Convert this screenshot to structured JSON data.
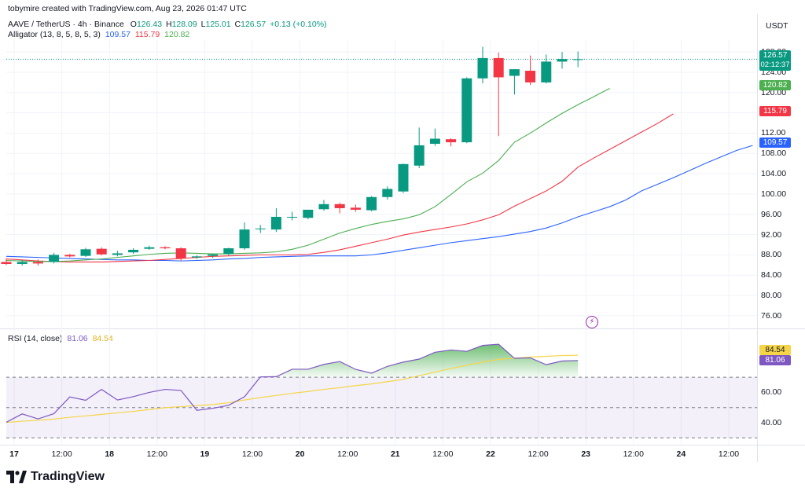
{
  "header": {
    "credit": "tobymire created with TradingView.com, Aug 23, 2026 01:47 UTC",
    "symbol": "AAVE / TetherUS · 4h · Binance",
    "o_label": "O",
    "o_value": "126.43",
    "h_label": "H",
    "h_value": "128.09",
    "l_label": "L",
    "l_value": "125.01",
    "c_label": "C",
    "c_value": "126.57",
    "change": "+0.13 (+0.10%)",
    "alligator_label": "Alligator (13, 8, 5, 8, 5, 3)",
    "alligator_jaw": "109.57",
    "alligator_teeth": "115.79",
    "alligator_lips": "120.82",
    "currency": "USDT"
  },
  "rsi_header": {
    "label": "RSI (14, close)",
    "rsi_value": "81.06",
    "ma_value": "84.54"
  },
  "price_badges": {
    "last_price": "126.57",
    "countdown": "02:12:37",
    "lips": "120.82",
    "teeth": "115.79",
    "jaw": "109.57"
  },
  "rsi_badges": {
    "ma": "84.54",
    "rsi": "81.06"
  },
  "footer": {
    "logo_text": "TradingView"
  },
  "colors": {
    "up": "#089981",
    "down": "#f23645",
    "jaw": "#2962ff",
    "teeth": "#f23645",
    "lips": "#4caf50",
    "rsi": "#7e57c2",
    "rsi_ma": "#f5d547"
  },
  "chart_data": [
    {
      "type": "candlestick",
      "title": "",
      "y_ticks": [
        "128.00",
        "124.00",
        "120.00",
        "116.00",
        "112.00",
        "108.00",
        "104.00",
        "100.00",
        "96.00",
        "92.00",
        "88.00",
        "84.00",
        "80.00",
        "76.00"
      ],
      "ylim": [
        73.5,
        130.5
      ],
      "x_ticks": [
        "17",
        "12:00",
        "18",
        "12:00",
        "19",
        "12:00",
        "20",
        "12:00",
        "21",
        "12:00",
        "22",
        "12:00",
        "23",
        "12:00",
        "24",
        "12:00"
      ],
      "x_tick_bar_index": [
        0,
        3,
        6,
        9,
        12,
        15,
        18,
        21,
        24,
        27,
        30,
        33,
        36,
        39,
        42,
        45
      ],
      "candles": [
        {
          "o": 86.6,
          "h": 87.3,
          "l": 86.0,
          "c": 86.2
        },
        {
          "o": 86.2,
          "h": 87.0,
          "l": 85.9,
          "c": 86.6
        },
        {
          "o": 86.6,
          "h": 87.1,
          "l": 85.9,
          "c": 86.3
        },
        {
          "o": 86.6,
          "h": 88.4,
          "l": 86.3,
          "c": 88.0
        },
        {
          "o": 88.0,
          "h": 88.2,
          "l": 87.5,
          "c": 87.7
        },
        {
          "o": 87.8,
          "h": 89.4,
          "l": 87.6,
          "c": 89.1
        },
        {
          "o": 89.2,
          "h": 89.5,
          "l": 87.9,
          "c": 88.1
        },
        {
          "o": 88.0,
          "h": 88.8,
          "l": 87.7,
          "c": 88.3
        },
        {
          "o": 88.5,
          "h": 89.3,
          "l": 88.2,
          "c": 89.0
        },
        {
          "o": 89.2,
          "h": 89.8,
          "l": 89.0,
          "c": 89.5
        },
        {
          "o": 89.5,
          "h": 89.7,
          "l": 89.1,
          "c": 89.3
        },
        {
          "o": 89.3,
          "h": 89.5,
          "l": 86.8,
          "c": 87.3
        },
        {
          "o": 87.5,
          "h": 87.9,
          "l": 87.2,
          "c": 87.7
        },
        {
          "o": 87.8,
          "h": 88.2,
          "l": 87.4,
          "c": 88.1
        },
        {
          "o": 88.2,
          "h": 89.4,
          "l": 87.9,
          "c": 89.3
        },
        {
          "o": 89.3,
          "h": 94.4,
          "l": 89.0,
          "c": 93.0
        },
        {
          "o": 93.1,
          "h": 93.9,
          "l": 92.3,
          "c": 93.2
        },
        {
          "o": 93.0,
          "h": 97.2,
          "l": 92.5,
          "c": 95.5
        },
        {
          "o": 95.5,
          "h": 96.5,
          "l": 94.8,
          "c": 95.5
        },
        {
          "o": 95.3,
          "h": 96.9,
          "l": 95.0,
          "c": 96.9
        },
        {
          "o": 97.0,
          "h": 98.8,
          "l": 96.7,
          "c": 98.0
        },
        {
          "o": 98.0,
          "h": 98.3,
          "l": 96.2,
          "c": 97.2
        },
        {
          "o": 97.3,
          "h": 97.9,
          "l": 96.5,
          "c": 96.9
        },
        {
          "o": 96.8,
          "h": 99.6,
          "l": 96.6,
          "c": 99.4
        },
        {
          "o": 99.4,
          "h": 101.5,
          "l": 98.9,
          "c": 101.0
        },
        {
          "o": 100.5,
          "h": 106.0,
          "l": 100.2,
          "c": 105.9
        },
        {
          "o": 105.6,
          "h": 113.1,
          "l": 105.1,
          "c": 109.6
        },
        {
          "o": 109.9,
          "h": 112.9,
          "l": 109.5,
          "c": 110.9
        },
        {
          "o": 110.8,
          "h": 111.0,
          "l": 109.4,
          "c": 110.2
        },
        {
          "o": 110.2,
          "h": 123.0,
          "l": 110.0,
          "c": 122.8
        },
        {
          "o": 122.8,
          "h": 129.0,
          "l": 121.8,
          "c": 126.8
        },
        {
          "o": 126.8,
          "h": 127.9,
          "l": 111.4,
          "c": 123.0
        },
        {
          "o": 123.3,
          "h": 124.6,
          "l": 119.6,
          "c": 124.6
        },
        {
          "o": 124.3,
          "h": 127.3,
          "l": 121.5,
          "c": 122.0
        },
        {
          "o": 122.0,
          "h": 127.5,
          "l": 121.8,
          "c": 126.1
        },
        {
          "o": 126.1,
          "h": 128.0,
          "l": 124.7,
          "c": 126.6
        },
        {
          "o": 126.43,
          "h": 128.09,
          "l": 125.01,
          "c": 126.57
        }
      ],
      "last_price": 126.57,
      "series": [
        {
          "name": "Jaw",
          "color": "#2962ff",
          "start_index": 0,
          "values": [
            87.7,
            87.6,
            87.5,
            87.4,
            87.3,
            87.2,
            87.1,
            87.0,
            87.0,
            86.9,
            86.9,
            86.8,
            86.9,
            87.0,
            87.2,
            87.3,
            87.5,
            87.6,
            87.7,
            87.8,
            87.8,
            87.8,
            87.8,
            88.0,
            88.4,
            88.9,
            89.4,
            89.9,
            90.4,
            90.8,
            91.2,
            91.6,
            92.1,
            92.6,
            93.3,
            94.3,
            95.5,
            96.5,
            97.5,
            98.8,
            100.6,
            101.9,
            103.2,
            104.6,
            106.0,
            107.3,
            108.6,
            109.57
          ]
        },
        {
          "name": "Teeth",
          "color": "#f23645",
          "start_index": 0,
          "values": [
            87.2,
            87.0,
            86.8,
            86.7,
            86.6,
            86.6,
            86.6,
            86.7,
            86.8,
            86.9,
            87.1,
            87.3,
            87.5,
            87.7,
            87.8,
            87.9,
            88.0,
            88.0,
            88.0,
            88.1,
            88.5,
            89.0,
            89.7,
            90.4,
            91.1,
            91.9,
            92.5,
            93.0,
            93.5,
            94.1,
            94.9,
            95.9,
            97.6,
            99.1,
            100.6,
            102.5,
            105.3,
            107.1,
            108.8,
            110.5,
            112.2,
            113.9,
            115.79
          ]
        },
        {
          "name": "Lips",
          "color": "#4caf50",
          "start_index": 0,
          "values": [
            86.9,
            86.8,
            86.7,
            86.7,
            86.8,
            87.0,
            87.2,
            87.5,
            87.8,
            88.1,
            88.3,
            88.4,
            88.3,
            88.2,
            88.2,
            88.3,
            88.4,
            88.6,
            89.1,
            89.9,
            91.1,
            92.3,
            93.2,
            94.0,
            94.6,
            95.1,
            95.9,
            97.5,
            99.9,
            102.4,
            104.1,
            106.6,
            110.2,
            112.0,
            114.0,
            115.9,
            117.6,
            119.2,
            120.82
          ]
        }
      ]
    },
    {
      "type": "line",
      "title": "RSI (14, close)",
      "y_ticks": [
        60.0,
        40.0
      ],
      "bands": [
        70,
        50,
        30
      ],
      "ylim": [
        26,
        96
      ],
      "series": [
        {
          "name": "RSI",
          "color": "#7e57c2",
          "values": [
            40.3,
            45.8,
            42.5,
            46.0,
            57.0,
            54.8,
            62.0,
            55.0,
            57.2,
            60.0,
            62.0,
            61.3,
            48.2,
            49.5,
            51.5,
            57.1,
            70.2,
            70.4,
            75.3,
            75.3,
            78.5,
            80.4,
            75.2,
            72.7,
            77.2,
            80.0,
            82.0,
            86.5,
            88.0,
            87.1,
            91.0,
            91.8,
            82.5,
            82.8,
            78.3,
            80.7,
            81.06
          ]
        },
        {
          "name": "RSI-based MA",
          "color": "#f5d547",
          "values": [
            40.2,
            41.0,
            41.6,
            42.4,
            43.6,
            44.5,
            45.5,
            46.5,
            47.5,
            48.7,
            49.9,
            50.6,
            51.3,
            52.0,
            53.2,
            55.0,
            56.6,
            58.0,
            59.4,
            60.6,
            62.0,
            63.1,
            64.5,
            65.6,
            67.1,
            68.6,
            71.0,
            73.4,
            75.8,
            77.9,
            80.0,
            81.8,
            82.6,
            83.3,
            83.8,
            84.3,
            84.54
          ]
        }
      ]
    }
  ]
}
